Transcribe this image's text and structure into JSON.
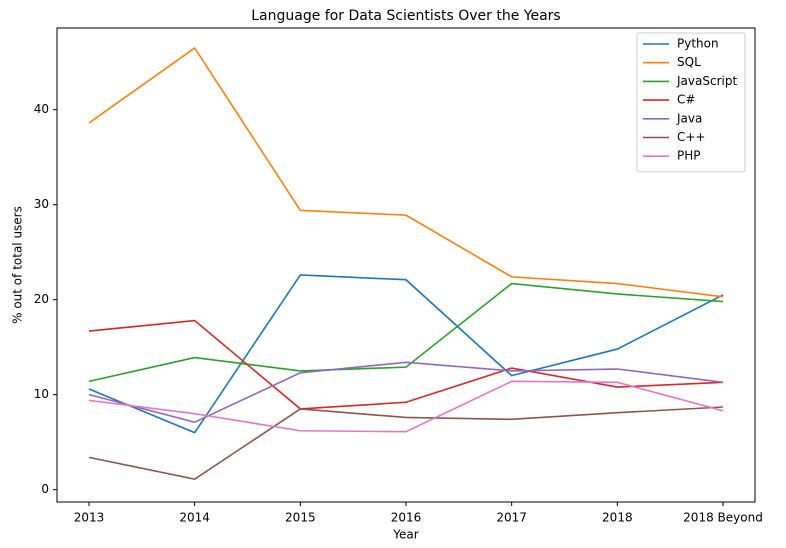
{
  "chart_data": {
    "type": "line",
    "title": "Language for Data Scientists Over the Years",
    "x_label": "Year",
    "y_label": "% out of total users",
    "categories": [
      "2013",
      "2014",
      "2015",
      "2016",
      "2017",
      "2018",
      "2018 Beyond"
    ],
    "series": [
      {
        "name": "Python",
        "color": "#1f77b4",
        "values": [
          10.6,
          6.0,
          22.6,
          22.1,
          12.0,
          14.8,
          20.5
        ]
      },
      {
        "name": "SQL",
        "color": "#ff7f0e",
        "values": [
          38.6,
          46.5,
          29.4,
          28.9,
          22.4,
          21.7,
          20.3
        ]
      },
      {
        "name": "JavaScript",
        "color": "#2ca02c",
        "values": [
          11.4,
          13.9,
          12.5,
          12.9,
          21.7,
          20.6,
          19.8
        ]
      },
      {
        "name": "C#",
        "color": "#d62728",
        "values": [
          16.7,
          17.8,
          8.5,
          9.2,
          12.8,
          10.8,
          11.3
        ]
      },
      {
        "name": "Java",
        "color": "#9467bd",
        "values": [
          10.0,
          7.1,
          12.3,
          13.4,
          12.5,
          12.7,
          11.3
        ]
      },
      {
        "name": "C++",
        "color": "#8c564b",
        "values": [
          3.4,
          1.1,
          8.5,
          7.6,
          7.4,
          8.1,
          8.7
        ]
      },
      {
        "name": "PHP",
        "color": "#e377c2",
        "values": [
          9.4,
          8.0,
          6.2,
          6.1,
          11.4,
          11.3,
          8.3
        ]
      }
    ],
    "ylim": [
      -1.3,
      48.6
    ],
    "yticks": [
      0,
      10,
      20,
      30,
      40
    ],
    "legend": "upper right"
  }
}
